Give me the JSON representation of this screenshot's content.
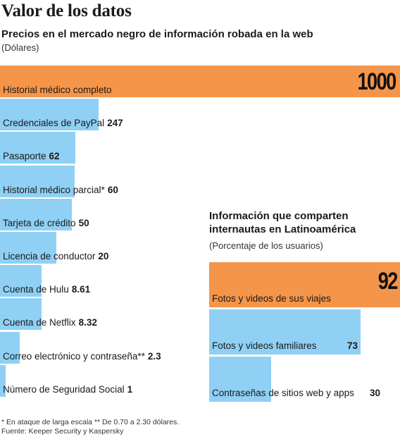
{
  "chart_data": [
    {
      "type": "bar",
      "orientation": "horizontal",
      "title": "Valor de los datos",
      "subtitle": "Precios en el mercado negro de información robada en la web",
      "unit_label": "(Dólares)",
      "categories": [
        "Historial médico completo",
        "Credenciales de PayPal",
        "Pasaporte",
        "Historial médico parcial*",
        "Tarjeta de crédito",
        "Licencia de conductor",
        "Cuenta de Hulu",
        "Cuenta de Netflix",
        "Correo electrónico y contraseña**",
        "Número de Seguridad Social"
      ],
      "values": [
        1000,
        247,
        62,
        60,
        50,
        20,
        8.61,
        8.32,
        2.3,
        1
      ],
      "value_labels": [
        "1000",
        "247",
        "62",
        "60",
        "50",
        "20",
        "8.61",
        "8.32",
        "2.3",
        "1"
      ],
      "colors": [
        "#f5954a",
        "#8fd0f4",
        "#8fd0f4",
        "#8fd0f4",
        "#8fd0f4",
        "#8fd0f4",
        "#8fd0f4",
        "#8fd0f4",
        "#8fd0f4",
        "#8fd0f4"
      ],
      "grid": false
    },
    {
      "type": "bar",
      "orientation": "horizontal",
      "title": "Información que comparten internautas en Latinoamérica",
      "unit_label": "(Porcentaje de los usuarios)",
      "categories": [
        "Fotos y videos de sus viajes",
        "Fotos y videos familiares",
        "Contraseñas de sitios web y apps"
      ],
      "values": [
        92,
        73,
        30
      ],
      "value_labels": [
        "92",
        "73",
        "30"
      ],
      "colors": [
        "#f5954a",
        "#8fd0f4",
        "#8fd0f4"
      ],
      "grid": false
    }
  ],
  "footnotes": [
    "* En ataque de larga escala  ** De 0.70 a 2.30 dólares.",
    "Fuente: Keeper Security y Kaspersky"
  ]
}
